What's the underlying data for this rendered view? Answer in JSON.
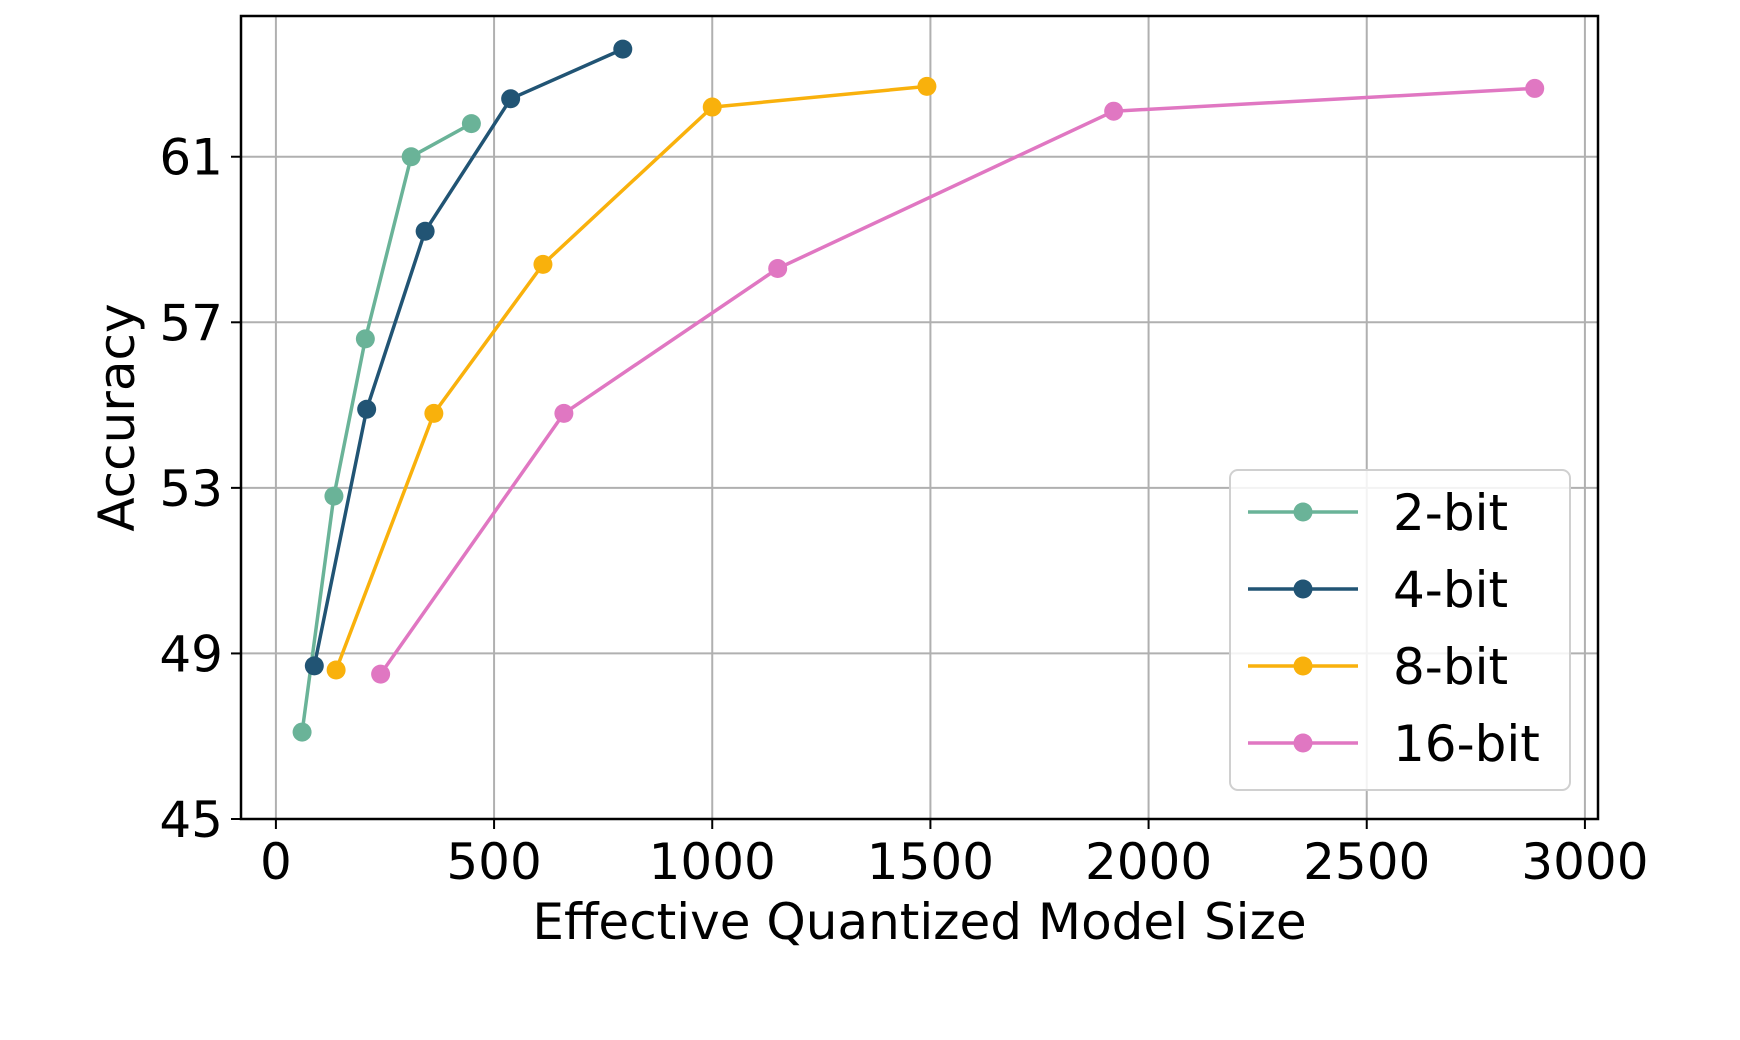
{
  "chart_data": {
    "type": "line",
    "title": "",
    "xlabel": "Effective Quantized Model Size",
    "ylabel": "Accuracy",
    "xlim": [
      -80,
      3030
    ],
    "ylim": [
      45,
      64.4
    ],
    "xticks": [
      0,
      500,
      1000,
      1500,
      2000,
      2500,
      3000
    ],
    "yticks": [
      45,
      49,
      53,
      57,
      61
    ],
    "x_tick_labels": [
      "0",
      "500",
      "1000",
      "1500",
      "2000",
      "2500",
      "3000"
    ],
    "y_tick_labels": [
      "45",
      "49",
      "53",
      "57",
      "61"
    ],
    "grid": true,
    "legend_position": "lower-right",
    "series": [
      {
        "name": "2-bit",
        "color": "#6ab398",
        "x": [
          60,
          133,
          205,
          310,
          448
        ],
        "y": [
          47.1,
          52.8,
          56.6,
          61.0,
          61.8
        ]
      },
      {
        "name": "4-bit",
        "color": "#215474",
        "x": [
          88,
          208,
          342,
          538,
          795
        ],
        "y": [
          48.7,
          54.9,
          59.2,
          62.4,
          63.6
        ]
      },
      {
        "name": "8-bit",
        "color": "#f9b10c",
        "x": [
          138,
          362,
          612,
          1000,
          1492
        ],
        "y": [
          48.6,
          54.8,
          58.4,
          62.2,
          62.7
        ]
      },
      {
        "name": "16-bit",
        "color": "#e077c2",
        "x": [
          240,
          660,
          1150,
          1920,
          2885
        ],
        "y": [
          48.5,
          54.8,
          58.3,
          62.1,
          62.65
        ]
      }
    ]
  }
}
